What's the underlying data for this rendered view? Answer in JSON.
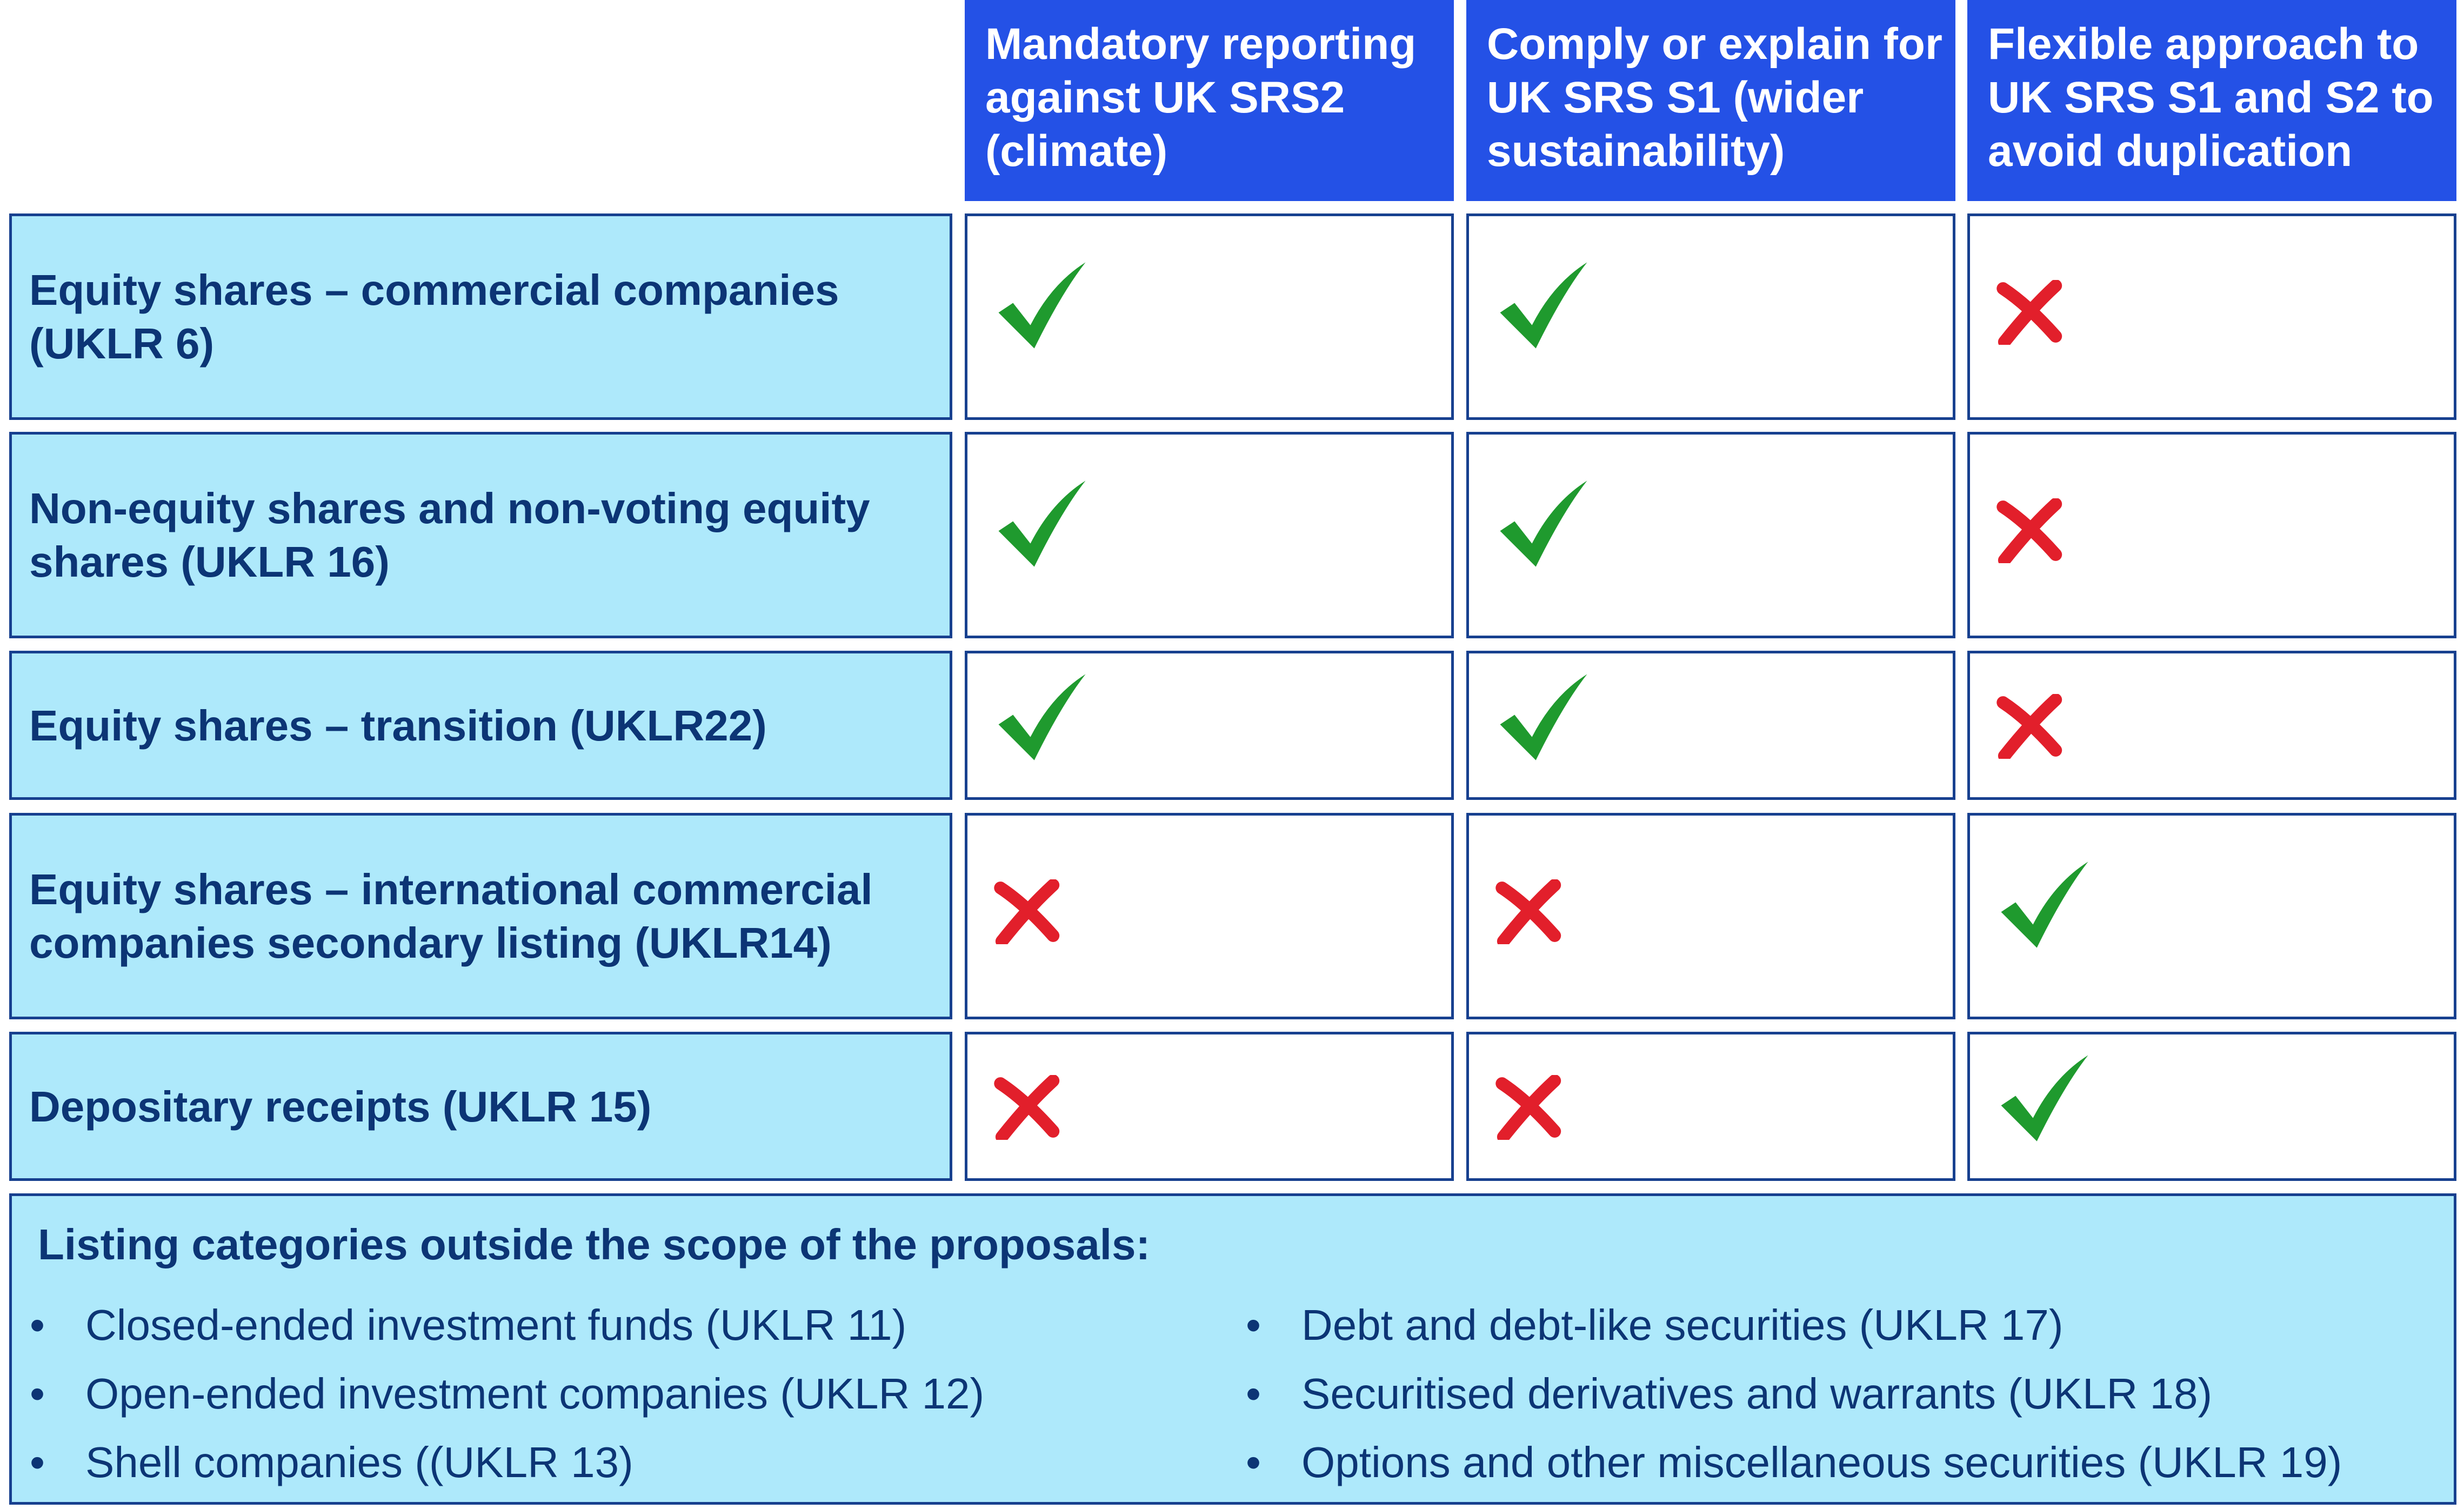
{
  "columns": [
    {
      "label": "Mandatory reporting against UK SRS2 (climate)"
    },
    {
      "label": "Comply or explain for UK SRS S1 (wider sustainability)"
    },
    {
      "label": "Flexible approach to UK SRS S1 and S2 to avoid duplication"
    }
  ],
  "rows": [
    {
      "label": "Equity shares – commercial companies (UKLR 6)",
      "marks": [
        "check-icon",
        "check-icon",
        "cross-icon"
      ]
    },
    {
      "label": "Non-equity shares and non-voting equity shares (UKLR 16)",
      "marks": [
        "check-icon",
        "check-icon",
        "cross-icon"
      ]
    },
    {
      "label": "Equity shares – transition (UKLR22)",
      "marks": [
        "check-icon",
        "check-icon",
        "cross-icon"
      ]
    },
    {
      "label": "Equity shares – international commercial companies secondary listing (UKLR14)",
      "marks": [
        "cross-icon",
        "cross-icon",
        "check-icon"
      ]
    },
    {
      "label": "Depositary receipts (UKLR 15)",
      "marks": [
        "cross-icon",
        "cross-icon",
        "check-icon"
      ]
    }
  ],
  "scope": {
    "title": "Listing categories outside the scope of the proposals:",
    "bullet": "•",
    "left_items": [
      "Closed-ended investment funds (UKLR 11)",
      "Open-ended investment companies (UKLR 12)",
      "Shell companies ((UKLR 13)"
    ],
    "right_items": [
      "Debt and debt-like securities (UKLR 17)",
      "Securitised derivatives and warrants (UKLR 18)",
      "Options and other miscellaneous securities (UKLR 19)"
    ]
  },
  "colors": {
    "header_bg": "#2451e6",
    "label_bg": "#aee9fb",
    "border": "#17408f",
    "check": "#1f9a2e",
    "cross": "#e21f2b"
  }
}
